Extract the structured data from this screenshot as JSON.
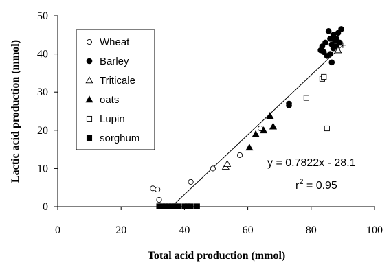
{
  "chart_data": {
    "type": "scatter",
    "xlabel": "Total acid production (mmol)",
    "ylabel": "Lactic acid production (mmol)",
    "xlim": [
      0,
      100
    ],
    "ylim": [
      0,
      50
    ],
    "xticks": [
      "0",
      "20",
      "40",
      "60",
      "80",
      "100"
    ],
    "yticks": [
      "0",
      "10",
      "20",
      "30",
      "40",
      "50"
    ],
    "grid": false,
    "legend_position": "top-left",
    "series": [
      {
        "name": "Wheat",
        "marker": "circle-open",
        "points": [
          [
            30,
            4.8
          ],
          [
            31.5,
            4.5
          ],
          [
            32,
            1.8
          ],
          [
            42,
            6.5
          ],
          [
            49,
            10
          ],
          [
            57.5,
            13.5
          ],
          [
            64,
            20.5
          ]
        ]
      },
      {
        "name": "Barley",
        "marker": "circle-filled",
        "points": [
          [
            83,
            41
          ],
          [
            83.5,
            42
          ],
          [
            84,
            40.5
          ],
          [
            84.5,
            43
          ],
          [
            85,
            39.5
          ],
          [
            85.5,
            46
          ],
          [
            86,
            40
          ],
          [
            86,
            44
          ],
          [
            86.5,
            37.8
          ],
          [
            86.5,
            42.5
          ],
          [
            87,
            45
          ],
          [
            87,
            41.5
          ],
          [
            87.5,
            43.5
          ],
          [
            88,
            44
          ],
          [
            88,
            42
          ],
          [
            88.5,
            45.5
          ],
          [
            89,
            43
          ],
          [
            89.5,
            46.5
          ],
          [
            73,
            26.5
          ],
          [
            73,
            27
          ]
        ]
      },
      {
        "name": "Triticale",
        "marker": "triangle-open",
        "points": [
          [
            53,
            10.5
          ],
          [
            53.5,
            11.2
          ],
          [
            88.5,
            41
          ]
        ]
      },
      {
        "name": "oats",
        "marker": "triangle-filled",
        "points": [
          [
            60.5,
            15.5
          ],
          [
            62.5,
            19
          ],
          [
            65,
            20
          ],
          [
            67,
            23.8
          ],
          [
            68,
            21
          ]
        ]
      },
      {
        "name": "Lupin",
        "marker": "square-open",
        "points": [
          [
            78.5,
            28.5
          ],
          [
            83.5,
            33.5
          ],
          [
            84,
            34
          ],
          [
            85,
            20.5
          ]
        ]
      },
      {
        "name": "sorghum",
        "marker": "square-filled",
        "points": [
          [
            32,
            0.1
          ],
          [
            33,
            0.1
          ],
          [
            34,
            0.1
          ],
          [
            35,
            0.1
          ],
          [
            36,
            0.1
          ],
          [
            37,
            0.1
          ],
          [
            38,
            0.1
          ],
          [
            40,
            0.1
          ],
          [
            41,
            0.1
          ],
          [
            42,
            0.1
          ],
          [
            44,
            0.1
          ]
        ]
      }
    ],
    "extra_markers": [
      {
        "marker": "cross",
        "points": [
          [
            90,
            42.3
          ]
        ]
      }
    ],
    "trendline": {
      "slope": 0.7822,
      "intercept": -28.1,
      "equation_text": "y = 0.7822x - 28.1",
      "r2_base": "r",
      "r2_sup": "2",
      "r2_rest": " = 0.95"
    }
  }
}
